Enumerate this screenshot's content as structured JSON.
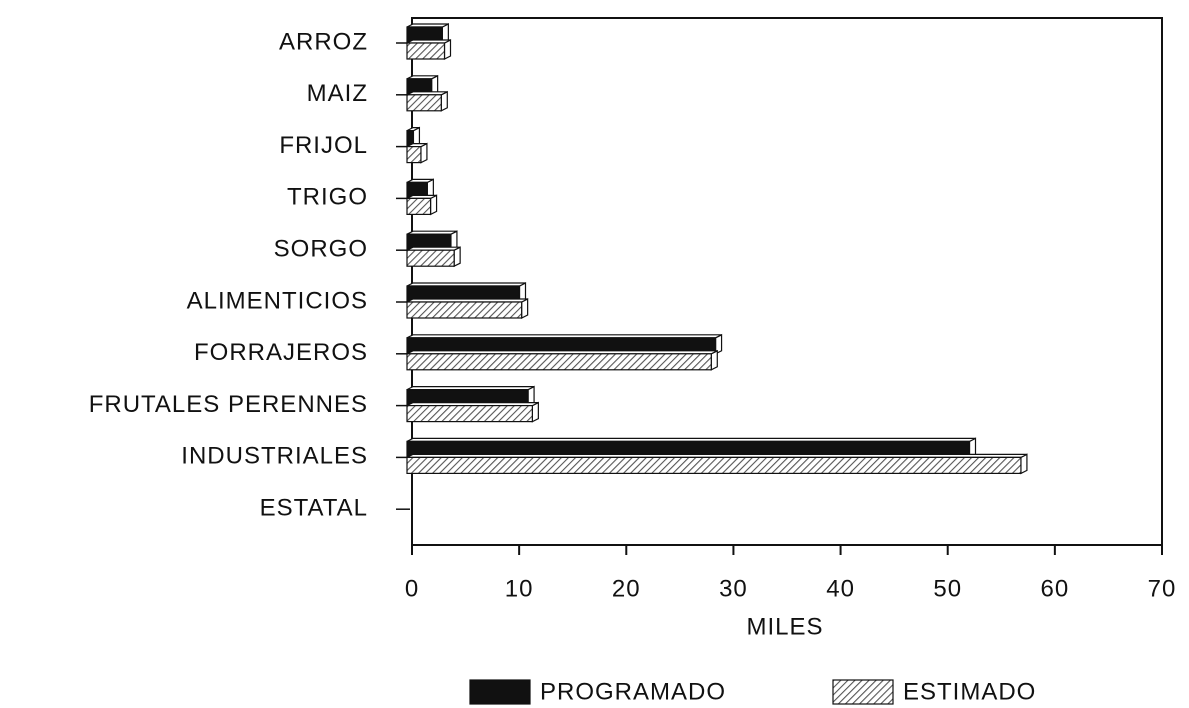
{
  "chart_data": {
    "type": "bar",
    "orientation": "horizontal",
    "categories": [
      "ARROZ",
      "MAIZ",
      "FRIJOL",
      "TRIGO",
      "SORGO",
      "ALIMENTICIOS",
      "FORRAJEROS",
      "FRUTALES PERENNES",
      "INDUSTRIALES",
      "ESTATAL"
    ],
    "series": [
      {
        "name": "PROGRAMADO",
        "color": "#111111",
        "values": [
          3.3,
          2.3,
          0.6,
          1.9,
          4.1,
          10.5,
          28.8,
          11.3,
          52.5,
          null
        ]
      },
      {
        "name": "ESTIMADO",
        "color": "#555555",
        "values": [
          3.5,
          3.2,
          1.3,
          2.2,
          4.4,
          10.7,
          28.4,
          11.7,
          57.3,
          null
        ]
      }
    ],
    "xlabel": "MILES",
    "xlim": [
      0,
      70
    ],
    "xticks": [
      0,
      10,
      20,
      30,
      40,
      50,
      60,
      70
    ],
    "legend": "bottom"
  }
}
